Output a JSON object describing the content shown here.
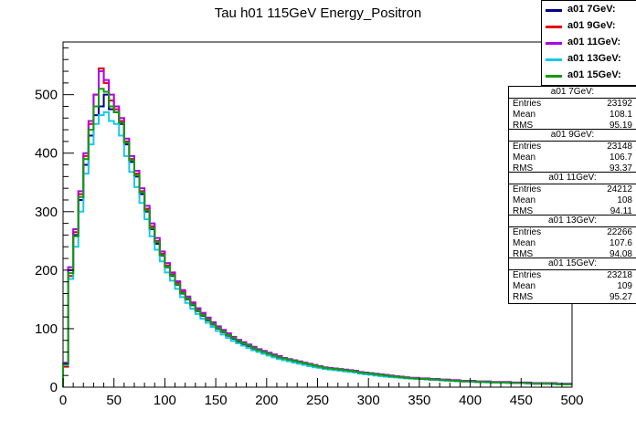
{
  "chart_data": {
    "type": "histogram",
    "title": "Tau h01 115GeV Energy_Positron",
    "xlabel": "",
    "ylabel": "",
    "xlim": [
      0,
      500
    ],
    "ylim": [
      0,
      590
    ],
    "x_ticks": [
      0,
      50,
      100,
      150,
      200,
      250,
      300,
      350,
      400,
      450,
      500
    ],
    "y_ticks": [
      0,
      100,
      200,
      300,
      400,
      500
    ],
    "bin_edges_start": 0,
    "bin_width": 5,
    "grid": false,
    "legend_position": "top-right",
    "series": [
      {
        "name": "a01 7GeV:",
        "color": "#00008b",
        "values": [
          40,
          200,
          260,
          320,
          380,
          430,
          465,
          480,
          500,
          475,
          470,
          450,
          415,
          385,
          360,
          330,
          300,
          270,
          245,
          225,
          205,
          190,
          175,
          160,
          150,
          140,
          130,
          122,
          114,
          107,
          100,
          94,
          88,
          83,
          78,
          74,
          70,
          66,
          62,
          59,
          56,
          53,
          50,
          48,
          46,
          44,
          42,
          40,
          38,
          36,
          34,
          32,
          31,
          30,
          29,
          28,
          27,
          26,
          24,
          23,
          22,
          21,
          20,
          19,
          18,
          17,
          17,
          16,
          15,
          15,
          14,
          14,
          13,
          13,
          12,
          12,
          11,
          11,
          10,
          10,
          10,
          9,
          9,
          9,
          8,
          8,
          8,
          8,
          7,
          7,
          7,
          7,
          6,
          6,
          6,
          6,
          6,
          5,
          5,
          5
        ],
        "stats": {
          "entries": "23192",
          "mean": "108.1",
          "rms": "95.19"
        }
      },
      {
        "name": "a01 9GeV:",
        "color": "#e8000b",
        "values": [
          35,
          190,
          265,
          330,
          395,
          450,
          500,
          545,
          520,
          490,
          475,
          455,
          420,
          390,
          365,
          335,
          305,
          275,
          250,
          228,
          208,
          193,
          178,
          163,
          152,
          142,
          132,
          124,
          116,
          108,
          101,
          95,
          89,
          84,
          79,
          75,
          71,
          67,
          63,
          60,
          57,
          54,
          51,
          49,
          47,
          45,
          43,
          41,
          39,
          37,
          35,
          33,
          32,
          31,
          30,
          29,
          28,
          27,
          25,
          24,
          23,
          22,
          21,
          20,
          19,
          18,
          17,
          16,
          15,
          15,
          14,
          14,
          13,
          13,
          12,
          12,
          11,
          11,
          10,
          10,
          10,
          9,
          9,
          9,
          8,
          8,
          8,
          8,
          7,
          7,
          7,
          7,
          6,
          6,
          6,
          6,
          6,
          5,
          5,
          5
        ],
        "stats": {
          "entries": "23148",
          "mean": "106.7",
          "rms": "93.37"
        }
      },
      {
        "name": "a01 11GeV:",
        "color": "#b000e8",
        "values": [
          42,
          205,
          270,
          335,
          400,
          455,
          500,
          540,
          525,
          500,
          480,
          460,
          425,
          395,
          370,
          340,
          310,
          280,
          255,
          232,
          212,
          196,
          181,
          166,
          155,
          145,
          135,
          127,
          119,
          111,
          104,
          98,
          92,
          86,
          81,
          77,
          73,
          69,
          65,
          62,
          59,
          56,
          53,
          50,
          48,
          46,
          44,
          42,
          40,
          38,
          36,
          34,
          33,
          32,
          31,
          30,
          29,
          28,
          26,
          25,
          24,
          23,
          22,
          21,
          20,
          19,
          18,
          17,
          16,
          16,
          15,
          15,
          14,
          14,
          13,
          13,
          12,
          12,
          11,
          11,
          11,
          10,
          10,
          10,
          9,
          9,
          9,
          9,
          8,
          8,
          8,
          8,
          7,
          7,
          7,
          7,
          7,
          6,
          6,
          6
        ],
        "stats": {
          "entries": "24212",
          "mean": "108",
          "rms": "94.11"
        }
      },
      {
        "name": "a01 13GeV:",
        "color": "#18c8e8",
        "values": [
          38,
          185,
          240,
          300,
          365,
          415,
          450,
          465,
          470,
          455,
          450,
          430,
          395,
          368,
          342,
          315,
          287,
          258,
          235,
          215,
          196,
          182,
          168,
          154,
          144,
          134,
          125,
          117,
          110,
          103,
          96,
          90,
          84,
          79,
          75,
          71,
          67,
          63,
          60,
          57,
          54,
          51,
          48,
          46,
          44,
          42,
          40,
          38,
          36,
          34,
          33,
          31,
          30,
          29,
          28,
          27,
          26,
          25,
          23,
          22,
          21,
          20,
          19,
          18,
          17,
          17,
          16,
          15,
          15,
          14,
          14,
          13,
          13,
          12,
          12,
          11,
          11,
          10,
          10,
          10,
          9,
          9,
          9,
          8,
          8,
          8,
          8,
          7,
          7,
          7,
          7,
          6,
          6,
          6,
          6,
          6,
          5,
          5,
          5,
          5
        ],
        "stats": {
          "entries": "22266",
          "mean": "107.6",
          "rms": "94.08"
        }
      },
      {
        "name": "a01 15GeV:",
        "color": "#119a11",
        "values": [
          40,
          195,
          258,
          325,
          390,
          440,
          480,
          510,
          505,
          480,
          470,
          452,
          418,
          388,
          362,
          333,
          302,
          272,
          248,
          226,
          206,
          191,
          176,
          161,
          151,
          141,
          131,
          123,
          115,
          108,
          101,
          95,
          89,
          84,
          79,
          75,
          71,
          67,
          63,
          60,
          57,
          54,
          51,
          49,
          47,
          45,
          43,
          41,
          39,
          37,
          35,
          33,
          32,
          31,
          30,
          29,
          28,
          27,
          25,
          24,
          23,
          22,
          21,
          20,
          19,
          18,
          17,
          16,
          15,
          15,
          14,
          14,
          13,
          13,
          12,
          12,
          11,
          11,
          10,
          10,
          10,
          9,
          9,
          9,
          8,
          8,
          8,
          8,
          7,
          7,
          7,
          7,
          6,
          6,
          6,
          6,
          6,
          5,
          5,
          5
        ],
        "stats": {
          "entries": "23218",
          "mean": "109",
          "rms": "95.27"
        }
      }
    ]
  },
  "stats_labels": {
    "entries": "Entries",
    "mean": "Mean",
    "rms": "RMS"
  }
}
